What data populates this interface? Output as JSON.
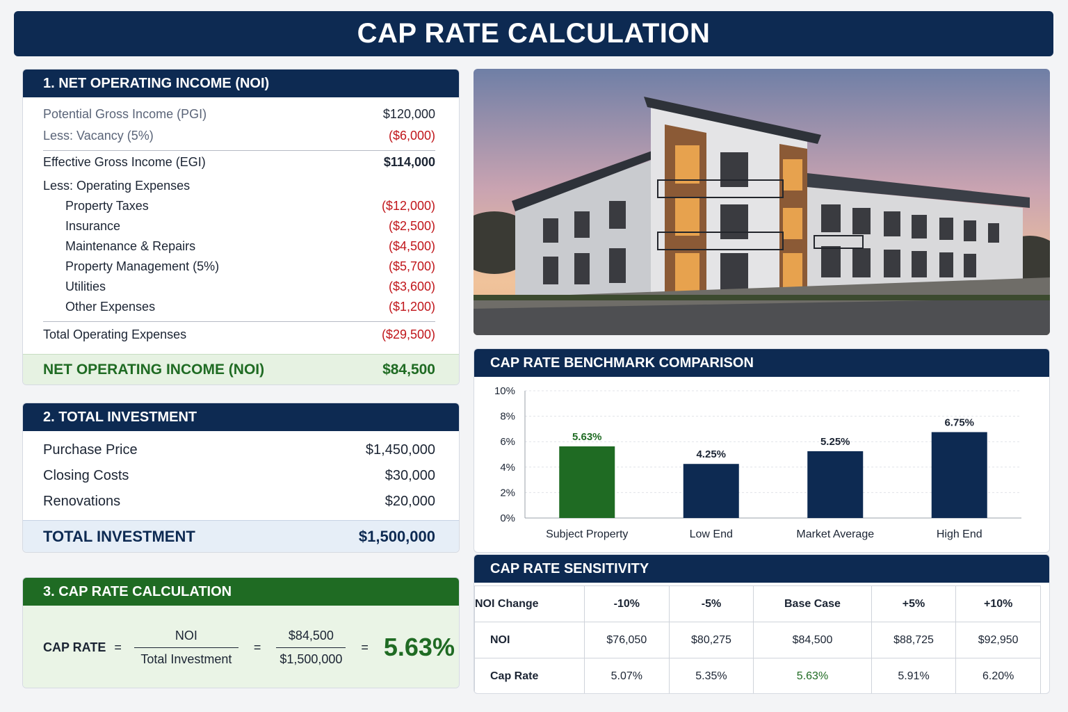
{
  "title": "CAP RATE CALCULATION",
  "noi_section": {
    "header": "1. NET OPERATING INCOME (NOI)",
    "pgi": {
      "label": "Potential Gross Income (PGI)",
      "value": "$120,000"
    },
    "vacancy": {
      "label": "Less: Vacancy (5%)",
      "value": "($6,000)"
    },
    "egi": {
      "label": "Effective Gross Income (EGI)",
      "value": "$114,000"
    },
    "opex_label": "Less: Operating Expenses",
    "expenses": [
      {
        "label": "Property Taxes",
        "value": "($12,000)"
      },
      {
        "label": "Insurance",
        "value": "($2,500)"
      },
      {
        "label": "Maintenance & Repairs",
        "value": "($4,500)"
      },
      {
        "label": "Property Management (5%)",
        "value": "($5,700)"
      },
      {
        "label": "Utilities",
        "value": "($3,600)"
      },
      {
        "label": "Other Expenses",
        "value": "($1,200)"
      }
    ],
    "total_opex": {
      "label": "Total Operating Expenses",
      "value": "($29,500)"
    },
    "noi": {
      "label": "NET OPERATING INCOME (NOI)",
      "value": "$84,500"
    }
  },
  "investment_section": {
    "header": "2. TOTAL INVESTMENT",
    "items": [
      {
        "label": "Purchase Price",
        "value": "$1,450,000"
      },
      {
        "label": "Closing Costs",
        "value": "$30,000"
      },
      {
        "label": "Renovations",
        "value": "$20,000"
      }
    ],
    "total": {
      "label": "TOTAL INVESTMENT",
      "value": "$1,500,000"
    }
  },
  "cap_section": {
    "header": "3. CAP RATE CALCULATION",
    "label": "CAP RATE",
    "eq": "=",
    "num1": "NOI",
    "den1": "Total Investment",
    "num2": "$84,500",
    "den2": "$1,500,000",
    "result": "5.63%"
  },
  "benchmark": {
    "header": "CAP RATE BENCHMARK COMPARISON"
  },
  "chart_data": {
    "type": "bar",
    "categories": [
      "Subject Property",
      "Low End",
      "Market Average",
      "High End"
    ],
    "values": [
      5.63,
      4.25,
      5.25,
      6.75
    ],
    "value_labels": [
      "5.63%",
      "4.25%",
      "5.25%",
      "6.75%"
    ],
    "y_ticks": [
      "0%",
      "2%",
      "4%",
      "6%",
      "8%",
      "10%"
    ],
    "ylim": [
      0,
      10
    ],
    "colors": [
      "#1f6b23",
      "#0d2a52",
      "#0d2a52",
      "#0d2a52"
    ],
    "label_colors": [
      "#1f6b23",
      "#1b2433",
      "#1b2433",
      "#1b2433"
    ],
    "grid": true,
    "title": "",
    "xlabel": "",
    "ylabel": ""
  },
  "sensitivity": {
    "header": "CAP RATE SENSITIVITY",
    "columns": [
      "NOI Change",
      "-10%",
      "-5%",
      "Base Case",
      "+5%",
      "+10%"
    ],
    "noi_row": [
      "NOI",
      "$76,050",
      "$80,275",
      "$84,500",
      "$88,725",
      "$92,950"
    ],
    "cap_row": [
      "Cap Rate",
      "5.07%",
      "5.35%",
      "5.63%",
      "5.91%",
      "6.20%"
    ]
  },
  "colors": {
    "navy": "#0d2a52",
    "green": "#1f6b23",
    "negative": "#c0151a"
  }
}
